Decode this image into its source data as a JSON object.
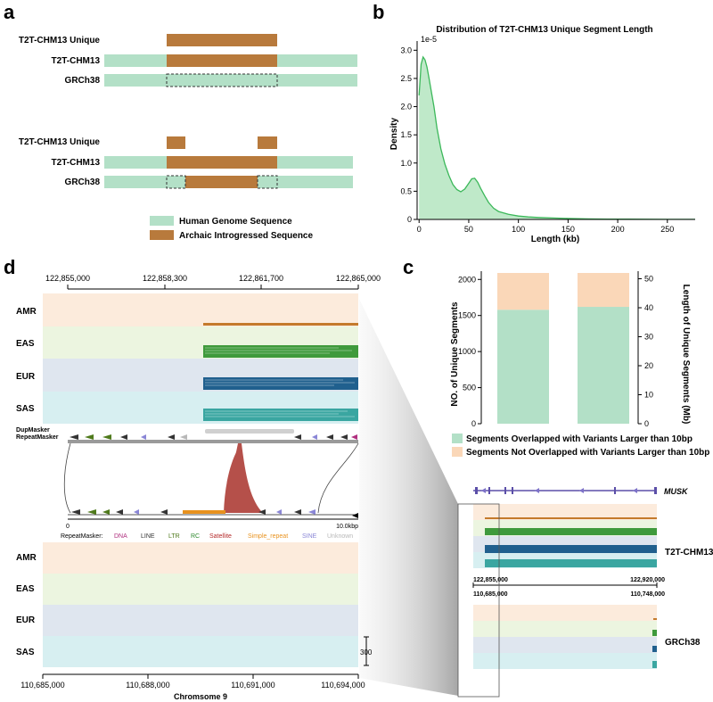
{
  "panels": {
    "a": "a",
    "b": "b",
    "c": "c",
    "d": "d"
  },
  "colors": {
    "human": "#b3e0c7",
    "archaic": "#b87a3c",
    "amr_bg": "#fcebdc",
    "eas_bg": "#ecf5e0",
    "eur_bg": "#dfe6ef",
    "sas_bg": "#d7eff1",
    "amr_line": "#c47a2c",
    "eas_bar": "#3f9a3c",
    "eur_bar": "#20608e",
    "sas_bar": "#3aa6a1",
    "density_line": "#3cb85a",
    "density_fill": "#bfe9c9",
    "overlapped": "#b3e0c7",
    "not_overlapped": "#fad7b8",
    "musk": "#5b4fa8",
    "satellite": "#b5504a"
  },
  "panel_a": {
    "top": {
      "unique": "T2T-CHM13 Unique",
      "t2t": "T2T-CHM13",
      "grch": "GRCh38"
    },
    "bottom": {
      "unique": "T2T-CHM13 Unique",
      "t2t": "T2T-CHM13",
      "grch": "GRCh38"
    },
    "legend": [
      "Human Genome Sequence",
      "Archaic Introgressed Sequence"
    ]
  },
  "panel_b": {
    "chart_data": {
      "type": "area",
      "title": "Distribution of T2T-CHM13 Unique Segment Length",
      "xlabel": "Length (kb)",
      "ylabel": "Density",
      "y_scale_label": "1e-5",
      "xlim": [
        -2,
        278
      ],
      "ylim": [
        0,
        3.1
      ],
      "xticks": [
        0,
        50,
        100,
        150,
        200,
        250
      ],
      "yticks": [
        0,
        0.5,
        1.0,
        1.5,
        2.0,
        2.5,
        3.0
      ],
      "ytick_labels": [
        "0",
        "0.5",
        "1.0",
        "1.5",
        "2.0",
        "2.5",
        "3.0"
      ],
      "x": [
        0,
        2,
        4,
        6,
        8,
        10,
        12,
        15,
        18,
        22,
        26,
        30,
        34,
        38,
        42,
        46,
        50,
        53,
        56,
        59,
        62,
        66,
        70,
        75,
        80,
        90,
        100,
        110,
        120,
        135,
        150,
        170,
        190,
        210,
        230,
        250,
        270,
        278
      ],
      "y": [
        2.2,
        2.75,
        2.88,
        2.83,
        2.7,
        2.5,
        2.3,
        2.0,
        1.62,
        1.25,
        0.98,
        0.78,
        0.62,
        0.53,
        0.49,
        0.54,
        0.64,
        0.72,
        0.73,
        0.66,
        0.55,
        0.42,
        0.3,
        0.2,
        0.14,
        0.09,
        0.06,
        0.045,
        0.035,
        0.025,
        0.017,
        0.01,
        0.006,
        0.004,
        0.003,
        0.002,
        0.001,
        0.001
      ]
    }
  },
  "panel_c": {
    "chart_data": {
      "type": "bar",
      "categories": [
        "",
        ""
      ],
      "series": [
        {
          "name": "Segments Overlapped with Variants Larger than 10bp",
          "values": [
            1580,
            40.3
          ]
        },
        {
          "name": "Segments Not Overlapped with Variants Larger than 10bp",
          "values": [
            510,
            11.7
          ]
        }
      ],
      "left_axis": {
        "label": "NO. of Unique Segments",
        "ylim": [
          0,
          2090
        ],
        "ticks": [
          "0",
          "500",
          "1000",
          "1500",
          "2000"
        ],
        "tick_values": [
          0,
          500,
          1000,
          1500,
          2000
        ]
      },
      "right_axis": {
        "label": "Length of Unique Segments (Mb)",
        "ylim": [
          0,
          52
        ],
        "ticks": [
          "0",
          "10",
          "20",
          "30",
          "40",
          "50"
        ],
        "tick_values": [
          0,
          10,
          20,
          30,
          40,
          50
        ]
      }
    },
    "legend": [
      "Segments Overlapped with Variants Larger than 10bp",
      "Segments Not Overlapped with Variants Larger than 10bp"
    ]
  },
  "panel_d": {
    "top_ticks": [
      "122,855,000",
      "122,858,300",
      "122,861,700",
      "122,865,000"
    ],
    "populations": [
      "AMR",
      "EAS",
      "EUR",
      "SAS"
    ],
    "dupmasker": "DupMasker",
    "repeatmasker": "RepeatMasker",
    "scale_start": "0",
    "scale_end": "10.0kbp",
    "repeat_legend_title": "RepeatMasker:",
    "repeat_classes": [
      {
        "name": "DNA",
        "color": "#b0307f"
      },
      {
        "name": "LINE",
        "color": "#333333"
      },
      {
        "name": "LTR",
        "color": "#4f7a1c"
      },
      {
        "name": "RC",
        "color": "#2f8a2f"
      },
      {
        "name": "Satellite",
        "color": "#b52a2a"
      },
      {
        "name": "Simple_repeat",
        "color": "#e8921e"
      },
      {
        "name": "SINE",
        "color": "#8a86d6"
      },
      {
        "name": "Unknown",
        "color": "#b8b8b8"
      }
    ],
    "bottom_ticks": [
      "110,685,000",
      "110,688,000",
      "110,691,000",
      "110,694,000"
    ],
    "chrom_label": "Chromsome 9",
    "scale_bar": "300"
  },
  "inset": {
    "gene": "MUSK",
    "t2t_label": "T2T-CHM13",
    "grch_label": "GRCh38",
    "t2t_left": "122,855,000",
    "t2t_right": "122,920,000",
    "grch_left": "110,685,000",
    "grch_right": "110,748,000"
  }
}
